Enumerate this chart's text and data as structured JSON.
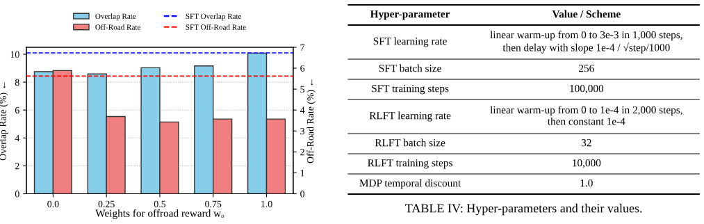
{
  "chart_data": [
    {
      "type": "bar",
      "xlabel": "Weights for offroad reward wₒ",
      "ylabel": "Overlap Rate (%) ←",
      "y2label": "Off-Road Rate (%) ←",
      "categories": [
        "0.0",
        "0.25",
        "0.5",
        "0.75",
        "1.0"
      ],
      "series": [
        {
          "name": "Overlap Rate",
          "color": "#87ceeb",
          "values": [
            8.75,
            8.59,
            9.03,
            9.16,
            10.08
          ]
        },
        {
          "name": "Off-Road Rate",
          "color": "#f08080",
          "axis": "y2",
          "values": [
            5.89,
            3.69,
            3.43,
            3.57,
            3.57
          ]
        }
      ],
      "ylim": [
        0,
        10.5
      ],
      "yticks": [
        0,
        2,
        4,
        6,
        8,
        10
      ],
      "y2lim": [
        0,
        7
      ],
      "y2ticks": [
        0,
        1,
        2,
        3,
        4,
        5,
        6,
        7
      ],
      "ref_lines": [
        {
          "axis": "y",
          "value": 10.1,
          "label": "SFT Overlap Rate",
          "color": "#0000ff",
          "line_style": "dashed"
        },
        {
          "axis": "y2",
          "value": 5.62,
          "label": "SFT Off-Road Rate",
          "color": "#ff0000",
          "line_style": "dashed"
        }
      ],
      "grid": "y",
      "legend": "top"
    },
    {
      "type": "other",
      "title": "TABLE IV: Hyper-parameters and their values.",
      "annotations": [
        "Hyper-parameter",
        "Value / Scheme",
        "SFT learning rate",
        "linear warm-up from 0 to 3e-3 in 1,000 steps,\nthen delay with slope 1e-4 / √step/1000",
        "SFT batch size",
        "256",
        "SFT training steps",
        "100,000",
        "RLFT learning rate",
        "linear warm-up from 0 to 1e-4 in 2,000 steps,\nthen constant 1e-4",
        "RLFT batch size",
        "32",
        "RLFT training steps",
        "10,000",
        "MDP temporal discount",
        "1.0"
      ]
    }
  ]
}
